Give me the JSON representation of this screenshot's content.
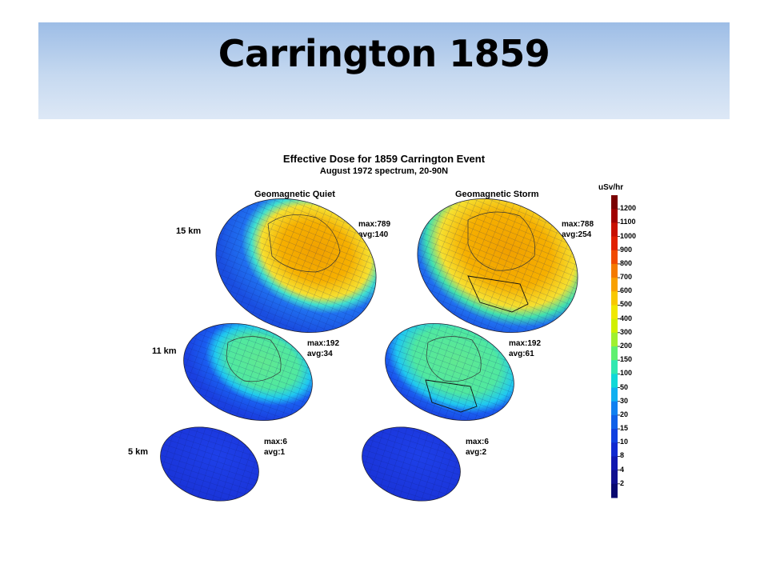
{
  "slide_title": "Carrington 1859",
  "figure": {
    "title": "Effective Dose for 1859 Carrington Event",
    "subtitle": "August 1972 spectrum, 20-90N",
    "columns": [
      "Geomagnetic Quiet",
      "Geomagnetic Storm"
    ],
    "panels": [
      {
        "altitude": "15 km",
        "quiet": {
          "max": "max:789",
          "avg": "avg:140"
        },
        "storm": {
          "max": "max:788",
          "avg": "avg:254"
        }
      },
      {
        "altitude": "11 km",
        "quiet": {
          "max": "max:192",
          "avg": "avg:34"
        },
        "storm": {
          "max": "max:192",
          "avg": "avg:61"
        }
      },
      {
        "altitude": "5 km",
        "quiet": {
          "max": "max:6",
          "avg": "avg:1"
        },
        "storm": {
          "max": "max:6",
          "avg": "avg:2"
        }
      }
    ],
    "colorbar": {
      "unit": "uSv/hr",
      "ticks": [
        "1200",
        "1100",
        "1000",
        "900",
        "800",
        "700",
        "600",
        "500",
        "400",
        "300",
        "200",
        "150",
        "100",
        "50",
        "30",
        "20",
        "15",
        "10",
        "8",
        "4",
        "2"
      ],
      "colors": [
        "#7a0000",
        "#a00000",
        "#c81000",
        "#e02000",
        "#f04a00",
        "#f47a00",
        "#f8a000",
        "#f8c800",
        "#f0e800",
        "#d0f000",
        "#a0f030",
        "#60f070",
        "#30e8b0",
        "#10d8d8",
        "#10b0f0",
        "#1080f0",
        "#1060e8",
        "#1040e0",
        "#1028d0",
        "#1018b0",
        "#101090",
        "#080870"
      ]
    }
  }
}
